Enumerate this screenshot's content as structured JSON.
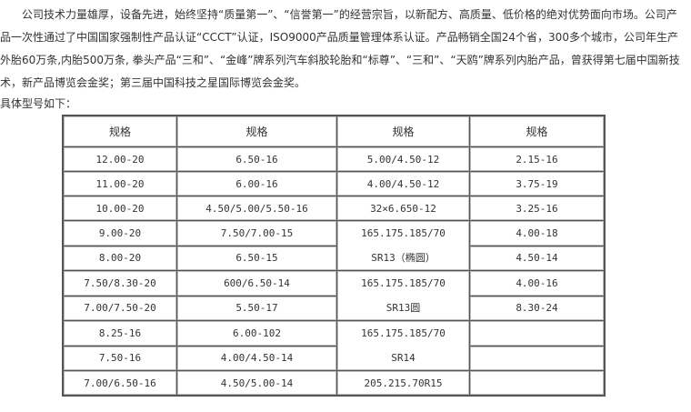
{
  "intro": "公司技术力量雄厚，设备先进，始终坚持“质量第一”、“信誉第一”的经营宗旨，以新配方、高质量、低价格的绝对优势面向市场。公司产品一次性通过了中国国家强制性产品认证“CCCT”认证，ISO9000产品质量管理体系认证。产品畅销全国24个省，300多个城市，公司年生产外胎60万条,内胎500万条, 拳头产品“三和”、“金峰”牌系列汽车斜胶轮胎和“标尊”、“三和”、“天鸥”牌系列内胎产品，曾获得第七届中国新技术，新产品博览会金奖；第三届中国科技之星国际博览会金奖。",
  "subheading": "具体型号如下：",
  "table": {
    "headers": [
      "规格",
      "规格",
      "规格",
      "规格"
    ],
    "rows": [
      [
        {
          "t": "12.00-20"
        },
        {
          "t": "6.50-16"
        },
        {
          "t": "5.00/4.50-12"
        },
        {
          "t": "2.15-16"
        }
      ],
      [
        {
          "t": "11.00-20"
        },
        {
          "t": "6.00-16"
        },
        {
          "t": "4.00/4.50-12"
        },
        {
          "t": "3.75-19"
        }
      ],
      [
        {
          "t": "10.00-20"
        },
        {
          "t": "4.50/5.00/5.50-16"
        },
        {
          "t": "32×6.650-12"
        },
        {
          "t": "3.25-16"
        }
      ],
      [
        {
          "t": "9.00-20"
        },
        {
          "t": "7.50/7.00-15"
        },
        {
          "t": "165.175.185/70",
          "t2": "SR13（椭圆）",
          "rs": 2
        },
        {
          "t": "4.00-18"
        }
      ],
      [
        {
          "t": "8.00-20"
        },
        {
          "t": "6.50-15"
        },
        {
          "t": "4.50-14"
        }
      ],
      [
        {
          "t": "7.50/8.30-20"
        },
        {
          "t": "600/6.50-14"
        },
        {
          "t": "165.175.185/70",
          "t2": "SR13圆",
          "rs": 2
        },
        {
          "t": "4.00-16"
        }
      ],
      [
        {
          "t": "7.00/7.50-20"
        },
        {
          "t": "5.50-17"
        },
        {
          "t": "8.30-24"
        }
      ],
      [
        {
          "t": "8.25-16"
        },
        {
          "t": "6.00-102"
        },
        {
          "t": "165.175.185/70",
          "t2": "SR14",
          "rs": 2
        },
        {
          "t": ""
        }
      ],
      [
        {
          "t": "7.50-16"
        },
        {
          "t": "4.00/4.50-14"
        },
        {
          "t": ""
        }
      ],
      [
        {
          "t": "7.00/6.50-16"
        },
        {
          "t": "4.50/5.00-14"
        },
        {
          "t": "205.215.70R15"
        },
        {
          "t": ""
        }
      ]
    ]
  }
}
